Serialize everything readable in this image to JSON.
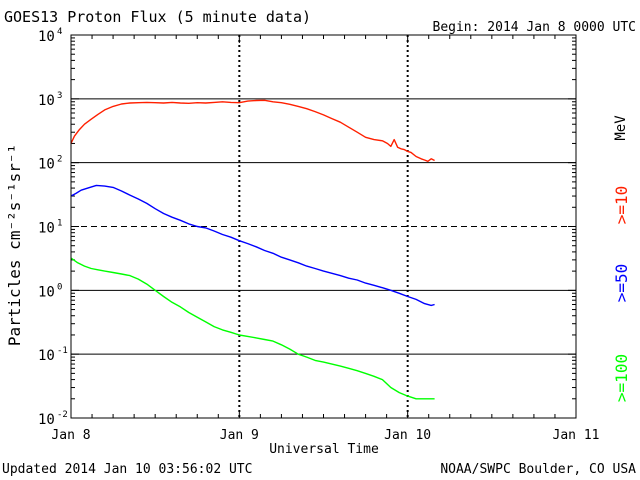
{
  "chart_data": {
    "type": "line",
    "title": "GOES13 Proton Flux (5 minute data)",
    "begin_label": "Begin: 2014 Jan 8 0000 UTC",
    "updated_label": "Updated 2014 Jan 10 03:56:02 UTC",
    "credit": "NOAA/SWPC Boulder, CO USA",
    "xlabel": "Universal Time",
    "ylabel": "Particles cm⁻²s⁻¹sr⁻¹",
    "x_unit": "days since 2014 Jan 8 0000 UTC",
    "xlim": [
      0,
      3
    ],
    "ylim": [
      0.01,
      10000
    ],
    "y_scale": "log",
    "x_ticks": [
      {
        "x": 0,
        "label": "Jan 8"
      },
      {
        "x": 1,
        "label": "Jan 9"
      },
      {
        "x": 2,
        "label": "Jan 10"
      },
      {
        "x": 3,
        "label": "Jan 11"
      }
    ],
    "y_ticks": [
      {
        "y": 0.01,
        "base": "10",
        "exp": "-2"
      },
      {
        "y": 0.1,
        "base": "10",
        "exp": "-1"
      },
      {
        "y": 1,
        "base": "10",
        "exp": "0"
      },
      {
        "y": 10,
        "base": "10",
        "exp": "1"
      },
      {
        "y": 100,
        "base": "10",
        "exp": "2"
      },
      {
        "y": 1000,
        "base": "10",
        "exp": "3"
      },
      {
        "y": 10000,
        "base": "10",
        "exp": "4"
      }
    ],
    "reference_lines": [
      {
        "y": 0.1,
        "style": "solid"
      },
      {
        "y": 1,
        "style": "solid"
      },
      {
        "y": 10,
        "style": "dashed"
      },
      {
        "y": 100,
        "style": "solid"
      },
      {
        "y": 1000,
        "style": "solid"
      }
    ],
    "mev_label": "MeV",
    "series": [
      {
        "name": ">=10",
        "color": "#ff2000",
        "points": [
          [
            0.0,
            200
          ],
          [
            0.02,
            260
          ],
          [
            0.05,
            330
          ],
          [
            0.08,
            400
          ],
          [
            0.12,
            480
          ],
          [
            0.16,
            570
          ],
          [
            0.2,
            670
          ],
          [
            0.25,
            760
          ],
          [
            0.3,
            830
          ],
          [
            0.35,
            860
          ],
          [
            0.4,
            870
          ],
          [
            0.45,
            880
          ],
          [
            0.5,
            870
          ],
          [
            0.55,
            860
          ],
          [
            0.6,
            880
          ],
          [
            0.65,
            860
          ],
          [
            0.7,
            850
          ],
          [
            0.75,
            870
          ],
          [
            0.8,
            860
          ],
          [
            0.85,
            880
          ],
          [
            0.9,
            900
          ],
          [
            0.95,
            880
          ],
          [
            1.0,
            870
          ],
          [
            1.05,
            920
          ],
          [
            1.1,
            940
          ],
          [
            1.15,
            950
          ],
          [
            1.2,
            900
          ],
          [
            1.25,
            870
          ],
          [
            1.3,
            820
          ],
          [
            1.35,
            760
          ],
          [
            1.4,
            700
          ],
          [
            1.45,
            630
          ],
          [
            1.5,
            560
          ],
          [
            1.55,
            490
          ],
          [
            1.6,
            430
          ],
          [
            1.65,
            360
          ],
          [
            1.7,
            300
          ],
          [
            1.75,
            250
          ],
          [
            1.8,
            230
          ],
          [
            1.85,
            220
          ],
          [
            1.88,
            200
          ],
          [
            1.9,
            180
          ],
          [
            1.92,
            230
          ],
          [
            1.94,
            175
          ],
          [
            1.96,
            165
          ],
          [
            1.98,
            160
          ],
          [
            2.0,
            150
          ],
          [
            2.02,
            145
          ],
          [
            2.05,
            125
          ],
          [
            2.08,
            115
          ],
          [
            2.1,
            110
          ],
          [
            2.12,
            105
          ],
          [
            2.14,
            115
          ],
          [
            2.16,
            108
          ]
        ]
      },
      {
        "name": ">=50",
        "color": "#0000ff",
        "points": [
          [
            0.0,
            30
          ],
          [
            0.03,
            33
          ],
          [
            0.06,
            37
          ],
          [
            0.1,
            40
          ],
          [
            0.15,
            44
          ],
          [
            0.2,
            43
          ],
          [
            0.25,
            41
          ],
          [
            0.3,
            36
          ],
          [
            0.35,
            31
          ],
          [
            0.4,
            27
          ],
          [
            0.45,
            23
          ],
          [
            0.5,
            19
          ],
          [
            0.55,
            16
          ],
          [
            0.6,
            14
          ],
          [
            0.65,
            12.5
          ],
          [
            0.7,
            11
          ],
          [
            0.75,
            10
          ],
          [
            0.8,
            9.5
          ],
          [
            0.85,
            8.5
          ],
          [
            0.9,
            7.5
          ],
          [
            0.95,
            6.8
          ],
          [
            1.0,
            6.0
          ],
          [
            1.05,
            5.4
          ],
          [
            1.1,
            4.8
          ],
          [
            1.15,
            4.2
          ],
          [
            1.2,
            3.8
          ],
          [
            1.25,
            3.3
          ],
          [
            1.3,
            3.0
          ],
          [
            1.35,
            2.7
          ],
          [
            1.4,
            2.4
          ],
          [
            1.45,
            2.2
          ],
          [
            1.5,
            2.0
          ],
          [
            1.55,
            1.85
          ],
          [
            1.6,
            1.7
          ],
          [
            1.65,
            1.55
          ],
          [
            1.7,
            1.45
          ],
          [
            1.75,
            1.3
          ],
          [
            1.8,
            1.2
          ],
          [
            1.85,
            1.1
          ],
          [
            1.9,
            1.0
          ],
          [
            1.95,
            0.9
          ],
          [
            2.0,
            0.8
          ],
          [
            2.05,
            0.72
          ],
          [
            2.1,
            0.62
          ],
          [
            2.14,
            0.58
          ],
          [
            2.16,
            0.6
          ]
        ]
      },
      {
        "name": ">=100",
        "color": "#00ff00",
        "points": [
          [
            0.0,
            3.2
          ],
          [
            0.04,
            2.7
          ],
          [
            0.08,
            2.4
          ],
          [
            0.12,
            2.2
          ],
          [
            0.16,
            2.1
          ],
          [
            0.2,
            2.0
          ],
          [
            0.25,
            1.9
          ],
          [
            0.3,
            1.8
          ],
          [
            0.35,
            1.7
          ],
          [
            0.4,
            1.5
          ],
          [
            0.45,
            1.25
          ],
          [
            0.5,
            1.0
          ],
          [
            0.55,
            0.8
          ],
          [
            0.6,
            0.65
          ],
          [
            0.65,
            0.55
          ],
          [
            0.7,
            0.45
          ],
          [
            0.75,
            0.38
          ],
          [
            0.8,
            0.32
          ],
          [
            0.85,
            0.27
          ],
          [
            0.9,
            0.24
          ],
          [
            0.95,
            0.22
          ],
          [
            1.0,
            0.2
          ],
          [
            1.05,
            0.19
          ],
          [
            1.1,
            0.18
          ],
          [
            1.15,
            0.17
          ],
          [
            1.2,
            0.16
          ],
          [
            1.25,
            0.14
          ],
          [
            1.3,
            0.12
          ],
          [
            1.35,
            0.1
          ],
          [
            1.4,
            0.09
          ],
          [
            1.45,
            0.08
          ],
          [
            1.5,
            0.075
          ],
          [
            1.55,
            0.07
          ],
          [
            1.6,
            0.065
          ],
          [
            1.65,
            0.06
          ],
          [
            1.7,
            0.055
          ],
          [
            1.75,
            0.05
          ],
          [
            1.8,
            0.045
          ],
          [
            1.85,
            0.04
          ],
          [
            1.9,
            0.03
          ],
          [
            1.95,
            0.025
          ],
          [
            2.0,
            0.022
          ],
          [
            2.05,
            0.02
          ],
          [
            2.1,
            0.02
          ],
          [
            2.16,
            0.02
          ]
        ]
      }
    ]
  }
}
